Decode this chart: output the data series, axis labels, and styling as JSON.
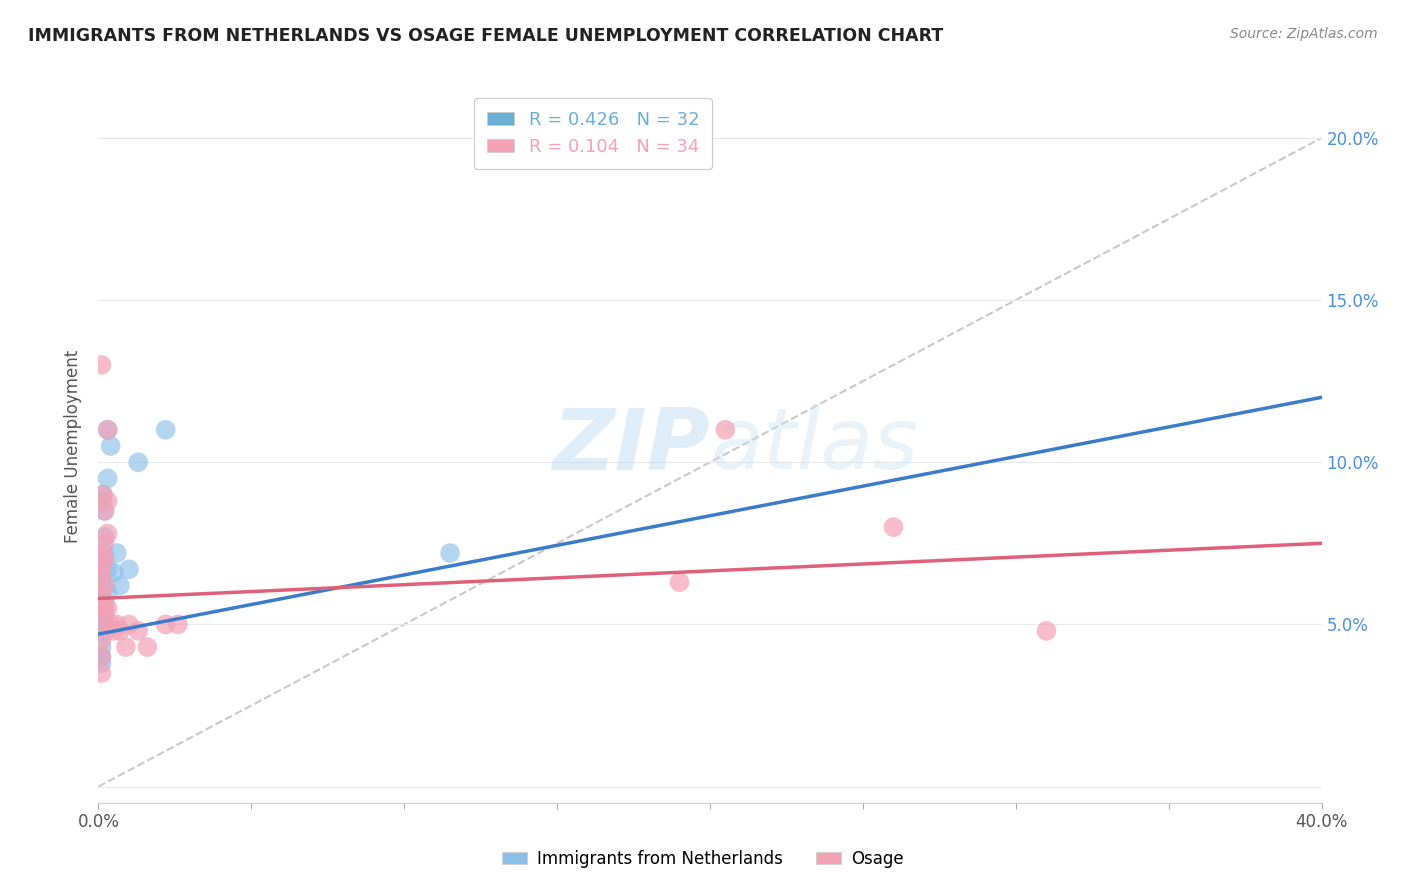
{
  "title": "IMMIGRANTS FROM NETHERLANDS VS OSAGE FEMALE UNEMPLOYMENT CORRELATION CHART",
  "source": "Source: ZipAtlas.com",
  "ylabel": "Female Unemployment",
  "right_yticklabels": [
    "",
    "5.0%",
    "10.0%",
    "15.0%",
    "20.0%"
  ],
  "xlim": [
    0.0,
    0.4
  ],
  "ylim": [
    -0.005,
    0.215
  ],
  "blue_scatter": [
    [
      0.001,
      0.062
    ],
    [
      0.001,
      0.058
    ],
    [
      0.001,
      0.065
    ],
    [
      0.001,
      0.063
    ],
    [
      0.001,
      0.07
    ],
    [
      0.001,
      0.06
    ],
    [
      0.001,
      0.055
    ],
    [
      0.001,
      0.05
    ],
    [
      0.001,
      0.043
    ],
    [
      0.001,
      0.04
    ],
    [
      0.001,
      0.038
    ],
    [
      0.001,
      0.052
    ],
    [
      0.0015,
      0.09
    ],
    [
      0.0015,
      0.088
    ],
    [
      0.002,
      0.085
    ],
    [
      0.002,
      0.077
    ],
    [
      0.002,
      0.072
    ],
    [
      0.002,
      0.057
    ],
    [
      0.002,
      0.053
    ],
    [
      0.002,
      0.048
    ],
    [
      0.003,
      0.11
    ],
    [
      0.003,
      0.095
    ],
    [
      0.003,
      0.067
    ],
    [
      0.003,
      0.06
    ],
    [
      0.004,
      0.105
    ],
    [
      0.005,
      0.066
    ],
    [
      0.006,
      0.072
    ],
    [
      0.007,
      0.062
    ],
    [
      0.01,
      0.067
    ],
    [
      0.013,
      0.1
    ],
    [
      0.022,
      0.11
    ],
    [
      0.115,
      0.072
    ]
  ],
  "pink_scatter": [
    [
      0.001,
      0.13
    ],
    [
      0.001,
      0.072
    ],
    [
      0.001,
      0.068
    ],
    [
      0.001,
      0.065
    ],
    [
      0.001,
      0.06
    ],
    [
      0.001,
      0.055
    ],
    [
      0.001,
      0.05
    ],
    [
      0.001,
      0.045
    ],
    [
      0.001,
      0.04
    ],
    [
      0.001,
      0.035
    ],
    [
      0.0015,
      0.09
    ],
    [
      0.002,
      0.085
    ],
    [
      0.002,
      0.075
    ],
    [
      0.002,
      0.07
    ],
    [
      0.002,
      0.062
    ],
    [
      0.002,
      0.055
    ],
    [
      0.003,
      0.11
    ],
    [
      0.003,
      0.088
    ],
    [
      0.003,
      0.078
    ],
    [
      0.003,
      0.055
    ],
    [
      0.004,
      0.05
    ],
    [
      0.005,
      0.048
    ],
    [
      0.006,
      0.05
    ],
    [
      0.007,
      0.048
    ],
    [
      0.009,
      0.043
    ],
    [
      0.01,
      0.05
    ],
    [
      0.013,
      0.048
    ],
    [
      0.016,
      0.043
    ],
    [
      0.022,
      0.05
    ],
    [
      0.026,
      0.05
    ],
    [
      0.19,
      0.063
    ],
    [
      0.205,
      0.11
    ],
    [
      0.26,
      0.08
    ],
    [
      0.31,
      0.048
    ]
  ],
  "blue_line": [
    [
      0.0,
      0.047
    ],
    [
      0.4,
      0.12
    ]
  ],
  "pink_line": [
    [
      0.0,
      0.058
    ],
    [
      0.4,
      0.075
    ]
  ],
  "dashed_line": [
    [
      0.0,
      0.0
    ],
    [
      0.4,
      0.2
    ]
  ],
  "blue_color": "#8bbfe8",
  "pink_color": "#f4a0b5",
  "blue_line_color": "#3a7cc9",
  "pink_line_color": "#e0607a",
  "dashed_color": "#c8c8c8",
  "watermark_zip": "ZIP",
  "watermark_atlas": "atlas",
  "background": "#ffffff",
  "grid_color": "#e8e8e8",
  "legend_entries": [
    {
      "label": "R = 0.426   N = 32",
      "color": "#6baed6"
    },
    {
      "label": "R = 0.104   N = 34",
      "color": "#f4a0b5"
    }
  ]
}
